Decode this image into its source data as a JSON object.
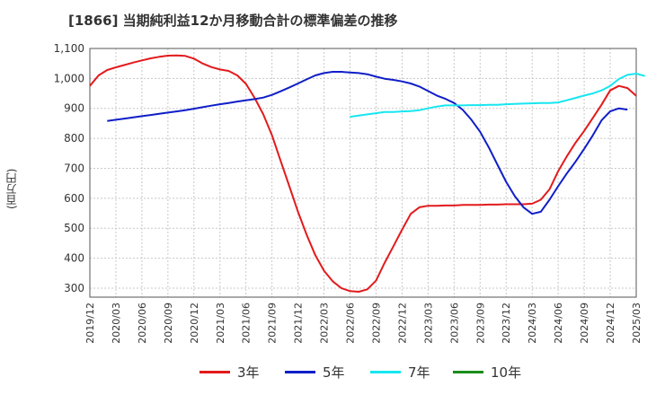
{
  "chart_data": {
    "type": "line",
    "title": "[1866]  当期純利益12か月移動合計の標準偏差の推移",
    "ylabel": "(百万円)",
    "xlabel": "",
    "ylim": [
      270,
      1100
    ],
    "yticks": [
      300,
      400,
      500,
      600,
      700,
      800,
      900,
      1000,
      1100
    ],
    "ytick_labels": [
      "300",
      "400",
      "500",
      "600",
      "700",
      "800",
      "900",
      "1,000",
      "1,100"
    ],
    "xtick_labels": [
      "2019/12",
      "2020/03",
      "2020/06",
      "2020/09",
      "2020/12",
      "2021/03",
      "2021/06",
      "2021/09",
      "2021/12",
      "2022/03",
      "2022/06",
      "2022/09",
      "2022/12",
      "2023/03",
      "2023/06",
      "2023/09",
      "2023/12",
      "2024/03",
      "2024/06",
      "2024/09",
      "2024/12",
      "2025/03"
    ],
    "x_start": "2019/12",
    "grid": true,
    "legend_position": "bottom",
    "series": [
      {
        "name": "3年",
        "color": "#e31a1c",
        "start_index": 0,
        "values": [
          975,
          1010,
          1028,
          1037,
          1045,
          1053,
          1060,
          1067,
          1072,
          1076,
          1077,
          1075,
          1066,
          1050,
          1038,
          1030,
          1025,
          1010,
          982,
          935,
          880,
          810,
          725,
          640,
          555,
          478,
          410,
          358,
          323,
          300,
          290,
          288,
          296,
          325,
          385,
          440,
          495,
          548,
          570,
          575,
          575,
          576,
          576,
          578,
          578,
          578,
          579,
          579,
          580,
          580,
          580,
          582,
          595,
          630,
          690,
          740,
          785,
          825,
          868,
          912,
          960,
          975,
          968,
          942
        ]
      },
      {
        "name": "5年",
        "color": "#0f1ec8",
        "start_index": 2,
        "values": [
          858,
          862,
          866,
          870,
          874,
          878,
          882,
          886,
          890,
          894,
          899,
          904,
          909,
          914,
          918,
          923,
          927,
          931,
          936,
          945,
          957,
          970,
          983,
          997,
          1010,
          1018,
          1022,
          1022,
          1020,
          1018,
          1014,
          1006,
          999,
          995,
          990,
          983,
          973,
          958,
          943,
          932,
          918,
          895,
          862,
          822,
          770,
          712,
          655,
          607,
          570,
          548,
          555,
          595,
          640,
          683,
          722,
          765,
          810,
          860,
          890,
          900,
          896
        ]
      },
      {
        "name": "7年",
        "color": "#17e6f0",
        "start_index": 30,
        "values": [
          872,
          876,
          880,
          884,
          888,
          888,
          890,
          891,
          894,
          900,
          906,
          910,
          910,
          910,
          911,
          911,
          912,
          912,
          914,
          915,
          916,
          917,
          918,
          918,
          920,
          927,
          935,
          943,
          950,
          960,
          975,
          998,
          1012,
          1016,
          1008
        ]
      },
      {
        "name": "10年",
        "color": "#1a8c1a",
        "start_index": 0,
        "values": []
      }
    ]
  }
}
